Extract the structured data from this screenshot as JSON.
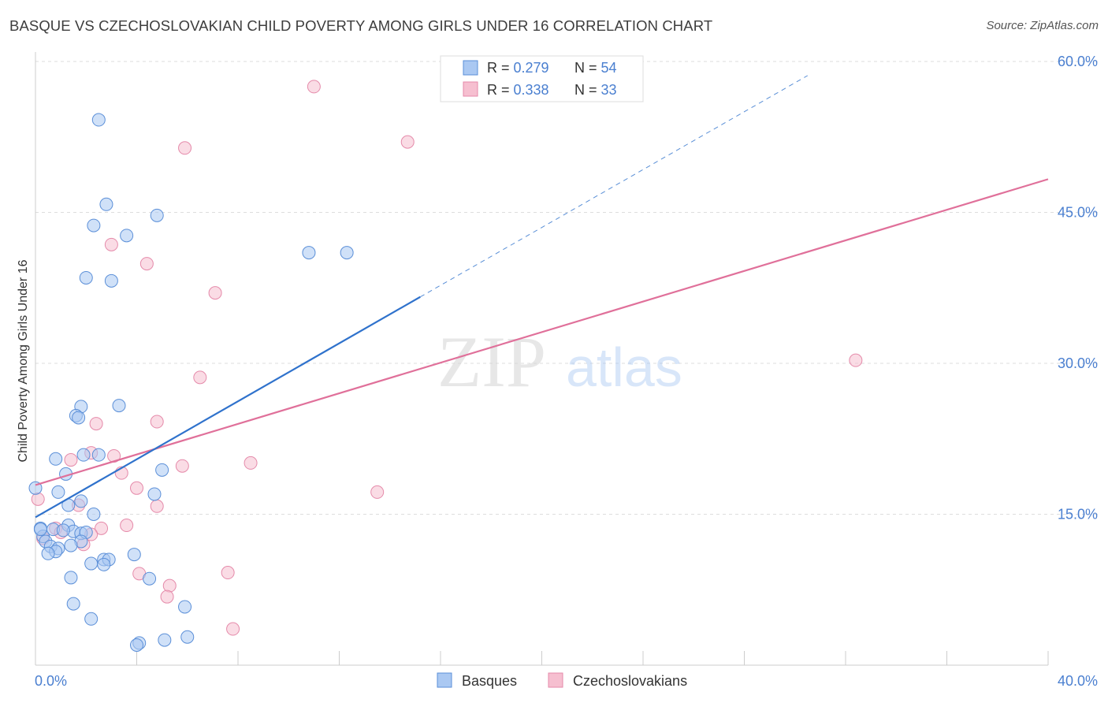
{
  "title": "BASQUE VS CZECHOSLOVAKIAN CHILD POVERTY AMONG GIRLS UNDER 16 CORRELATION CHART",
  "source": "Source: ZipAtlas.com",
  "watermark": {
    "zip": "ZIP",
    "atlas": "atlas"
  },
  "colors": {
    "blue_fill": "#aac8f2",
    "blue_stroke": "#5b8fd8",
    "blue_line": "#2f72cc",
    "pink_fill": "#f6bfd0",
    "pink_stroke": "#e58aaa",
    "pink_line": "#e0709a",
    "axis_label": "#4a7fd0",
    "grid": "#dddddd"
  },
  "legend_box": {
    "rows": [
      {
        "series": "Basques",
        "r_label": "R = ",
        "r_value": "0.279",
        "n_label": "N = ",
        "n_value": "54"
      },
      {
        "series": "Czechoslovakians",
        "r_label": "R = ",
        "r_value": "0.338",
        "n_label": "N = ",
        "n_value": "33"
      }
    ]
  },
  "chart_data": {
    "type": "scatter",
    "title": "BASQUE VS CZECHOSLOVAKIAN CHILD POVERTY AMONG GIRLS UNDER 16 CORRELATION CHART",
    "xlabel": "",
    "ylabel": "Child Poverty Among Girls Under 16",
    "xlim": [
      0,
      40
    ],
    "ylim": [
      0,
      60
    ],
    "x_tick_labels": {
      "0": "0.0%",
      "40": "40.0%"
    },
    "y_tick_labels": {
      "15": "15.0%",
      "30": "30.0%",
      "45": "45.0%",
      "60": "60.0%"
    },
    "legend": [
      "Basques",
      "Czechoslovakians"
    ],
    "series": [
      {
        "name": "Basques",
        "points": [
          [
            2.5,
            54.2
          ],
          [
            2.8,
            45.8
          ],
          [
            4.8,
            44.7
          ],
          [
            2.3,
            43.7
          ],
          [
            3.6,
            42.7
          ],
          [
            10.8,
            41.0
          ],
          [
            12.3,
            41.0
          ],
          [
            2.0,
            38.5
          ],
          [
            3.0,
            38.2
          ],
          [
            3.3,
            25.8
          ],
          [
            1.8,
            25.7
          ],
          [
            1.6,
            24.8
          ],
          [
            1.7,
            24.6
          ],
          [
            0.8,
            20.5
          ],
          [
            2.5,
            20.9
          ],
          [
            1.9,
            20.9
          ],
          [
            5.0,
            19.4
          ],
          [
            1.2,
            19.0
          ],
          [
            0.0,
            17.6
          ],
          [
            0.9,
            17.2
          ],
          [
            4.7,
            17.0
          ],
          [
            1.8,
            16.3
          ],
          [
            1.3,
            15.9
          ],
          [
            2.3,
            15.0
          ],
          [
            0.2,
            13.6
          ],
          [
            1.3,
            13.9
          ],
          [
            0.7,
            13.5
          ],
          [
            1.5,
            13.3
          ],
          [
            1.8,
            13.1
          ],
          [
            2.0,
            13.2
          ],
          [
            0.3,
            12.8
          ],
          [
            0.4,
            12.3
          ],
          [
            1.8,
            12.3
          ],
          [
            1.4,
            11.9
          ],
          [
            0.6,
            11.8
          ],
          [
            0.9,
            11.6
          ],
          [
            0.8,
            11.3
          ],
          [
            0.5,
            11.1
          ],
          [
            3.9,
            11.0
          ],
          [
            2.7,
            10.5
          ],
          [
            2.9,
            10.5
          ],
          [
            2.2,
            10.1
          ],
          [
            2.7,
            10.0
          ],
          [
            1.4,
            8.7
          ],
          [
            4.5,
            8.6
          ],
          [
            1.5,
            6.1
          ],
          [
            5.9,
            5.8
          ],
          [
            2.2,
            4.6
          ],
          [
            6.0,
            2.8
          ],
          [
            5.1,
            2.5
          ],
          [
            4.1,
            2.2
          ],
          [
            4.0,
            2.0
          ],
          [
            0.2,
            13.5
          ],
          [
            1.1,
            13.4
          ]
        ]
      },
      {
        "name": "Czechoslovakians",
        "points": [
          [
            11.0,
            57.5
          ],
          [
            14.7,
            52.0
          ],
          [
            5.9,
            51.4
          ],
          [
            3.0,
            41.8
          ],
          [
            4.4,
            39.9
          ],
          [
            7.1,
            37.0
          ],
          [
            32.4,
            30.3
          ],
          [
            6.5,
            28.6
          ],
          [
            4.8,
            24.2
          ],
          [
            2.4,
            24.0
          ],
          [
            2.2,
            21.1
          ],
          [
            3.1,
            20.8
          ],
          [
            1.4,
            20.4
          ],
          [
            8.5,
            20.1
          ],
          [
            5.8,
            19.8
          ],
          [
            3.4,
            19.1
          ],
          [
            0.1,
            16.5
          ],
          [
            4.0,
            17.6
          ],
          [
            13.5,
            17.2
          ],
          [
            1.7,
            15.9
          ],
          [
            4.8,
            15.8
          ],
          [
            3.6,
            13.9
          ],
          [
            2.6,
            13.6
          ],
          [
            0.8,
            13.6
          ],
          [
            1.0,
            13.2
          ],
          [
            1.9,
            12.0
          ],
          [
            4.1,
            9.1
          ],
          [
            7.6,
            9.2
          ],
          [
            5.3,
            7.9
          ],
          [
            5.2,
            6.8
          ],
          [
            7.8,
            3.6
          ],
          [
            0.3,
            12.6
          ],
          [
            2.2,
            13.0
          ]
        ]
      }
    ],
    "trendlines": [
      {
        "series": "Basques",
        "solid": [
          [
            0,
            14.7
          ],
          [
            15.2,
            36.6
          ]
        ],
        "dashed": [
          [
            15.2,
            36.6
          ],
          [
            30.5,
            58.6
          ]
        ]
      },
      {
        "series": "Czechoslovakians",
        "solid": [
          [
            0,
            17.9
          ],
          [
            40,
            48.3
          ]
        ]
      }
    ]
  }
}
